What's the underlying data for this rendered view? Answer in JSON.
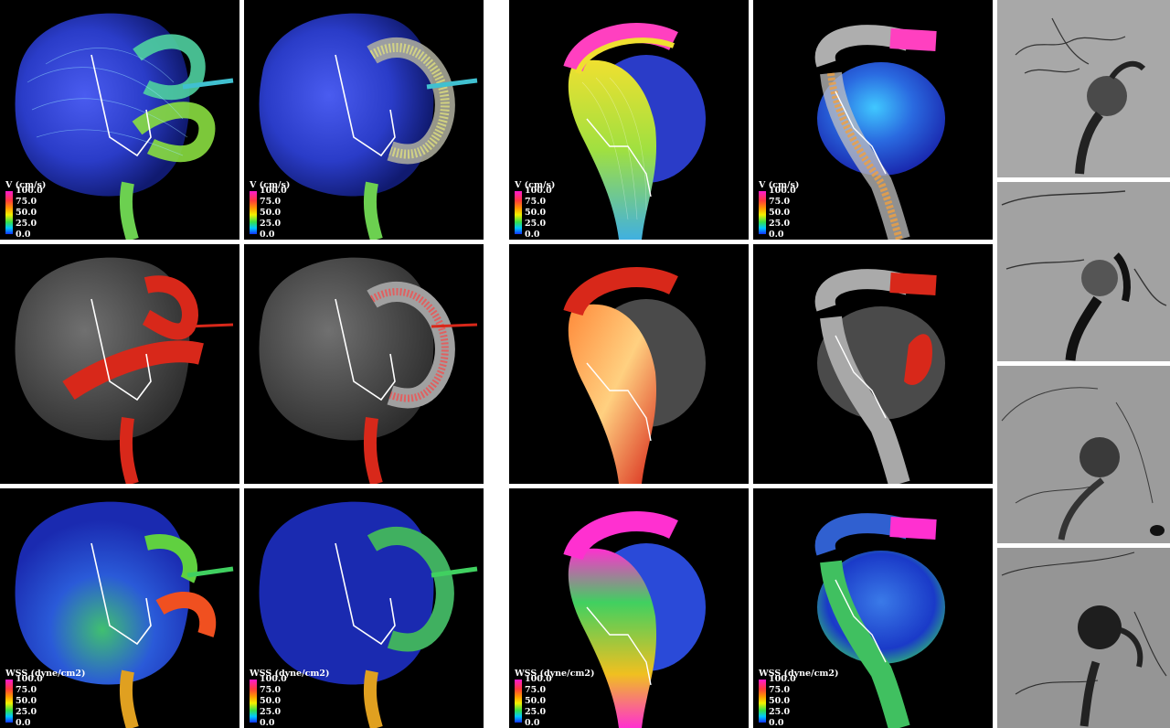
{
  "legends": {
    "velocity": {
      "title": "V (cm/s)",
      "ticks": [
        "100.0",
        "75.0",
        "50.0",
        "25.0",
        "0.0"
      ]
    },
    "wss": {
      "title": "WSS (dyne/cm2)",
      "ticks": [
        "100.0",
        "75.0",
        "50.0",
        "25.0",
        "0.0"
      ]
    }
  },
  "colors": {
    "panel_background": "#000000",
    "aneurysm_dome_blue": "#2a3cc8",
    "vessel_red": "#d8281a",
    "transparent_gray": "#5a5a5a",
    "stent_outline": "#ffffff",
    "xray_background": "#9a9a9a"
  }
}
